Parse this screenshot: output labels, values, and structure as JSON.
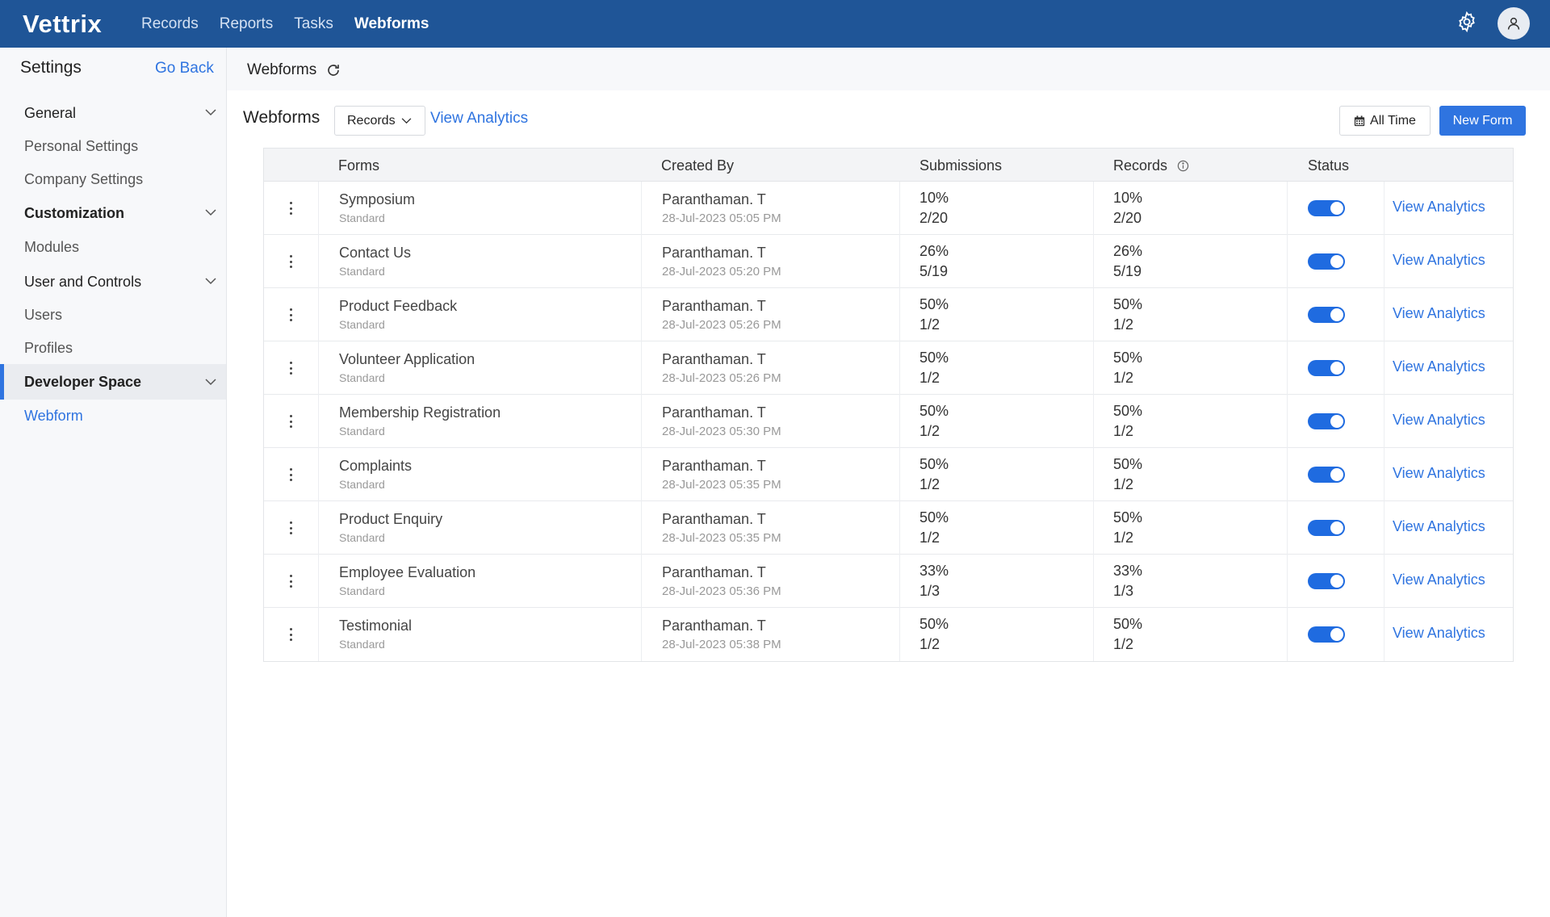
{
  "app": {
    "logo": "Vettrix"
  },
  "nav": {
    "items": [
      {
        "label": "Records"
      },
      {
        "label": "Reports"
      },
      {
        "label": "Tasks"
      },
      {
        "label": "Webforms"
      }
    ],
    "active": "Webforms"
  },
  "sidebar": {
    "title": "Settings",
    "go_back": "Go Back",
    "items": [
      {
        "label": "General",
        "type": "group"
      },
      {
        "label": "Personal Settings",
        "type": "item"
      },
      {
        "label": "Company Settings",
        "type": "item"
      },
      {
        "label": "Customization",
        "type": "group"
      },
      {
        "label": "Modules",
        "type": "item"
      },
      {
        "label": "User and Controls",
        "type": "group"
      },
      {
        "label": "Users",
        "type": "item"
      },
      {
        "label": "Profiles",
        "type": "item"
      },
      {
        "label": "Developer Space",
        "type": "group"
      },
      {
        "label": "Webform",
        "type": "item"
      }
    ]
  },
  "subheader": {
    "title": "Webforms"
  },
  "toolbar": {
    "title": "Webforms",
    "module_select": "Records",
    "view_analytics": "View Analytics",
    "all_time": "All Time",
    "new_form": "New Form"
  },
  "table": {
    "headers": {
      "forms": "Forms",
      "created_by": "Created By",
      "submissions": "Submissions",
      "records": "Records",
      "status": "Status"
    },
    "rows": [
      {
        "name": "Symposium",
        "type": "Standard",
        "creator": "Paranthaman. T",
        "date": "28-Jul-2023 05:05 PM",
        "sub_pct": "10%",
        "sub_frac": "2/20",
        "rec_pct": "10%",
        "rec_frac": "2/20",
        "active": true,
        "action": "View Analytics"
      },
      {
        "name": "Contact Us",
        "type": "Standard",
        "creator": "Paranthaman. T",
        "date": "28-Jul-2023 05:20 PM",
        "sub_pct": "26%",
        "sub_frac": "5/19",
        "rec_pct": "26%",
        "rec_frac": "5/19",
        "active": true,
        "action": "View Analytics"
      },
      {
        "name": "Product Feedback",
        "type": "Standard",
        "creator": "Paranthaman. T",
        "date": "28-Jul-2023 05:26 PM",
        "sub_pct": "50%",
        "sub_frac": "1/2",
        "rec_pct": "50%",
        "rec_frac": "1/2",
        "active": true,
        "action": "View Analytics"
      },
      {
        "name": "Volunteer Application",
        "type": "Standard",
        "creator": "Paranthaman. T",
        "date": "28-Jul-2023 05:26 PM",
        "sub_pct": "50%",
        "sub_frac": "1/2",
        "rec_pct": "50%",
        "rec_frac": "1/2",
        "active": true,
        "action": "View Analytics"
      },
      {
        "name": "Membership Registration",
        "type": "Standard",
        "creator": "Paranthaman. T",
        "date": "28-Jul-2023 05:30 PM",
        "sub_pct": "50%",
        "sub_frac": "1/2",
        "rec_pct": "50%",
        "rec_frac": "1/2",
        "active": true,
        "action": "View Analytics"
      },
      {
        "name": "Complaints",
        "type": "Standard",
        "creator": "Paranthaman. T",
        "date": "28-Jul-2023 05:35 PM",
        "sub_pct": "50%",
        "sub_frac": "1/2",
        "rec_pct": "50%",
        "rec_frac": "1/2",
        "active": true,
        "action": "View Analytics"
      },
      {
        "name": "Product Enquiry",
        "type": "Standard",
        "creator": "Paranthaman. T",
        "date": "28-Jul-2023 05:35 PM",
        "sub_pct": "50%",
        "sub_frac": "1/2",
        "rec_pct": "50%",
        "rec_frac": "1/2",
        "active": true,
        "action": "View Analytics"
      },
      {
        "name": "Employee Evaluation",
        "type": "Standard",
        "creator": "Paranthaman. T",
        "date": "28-Jul-2023 05:36 PM",
        "sub_pct": "33%",
        "sub_frac": "1/3",
        "rec_pct": "33%",
        "rec_frac": "1/3",
        "active": true,
        "action": "View Analytics"
      },
      {
        "name": "Testimonial",
        "type": "Standard",
        "creator": "Paranthaman. T",
        "date": "28-Jul-2023 05:38 PM",
        "sub_pct": "50%",
        "sub_frac": "1/2",
        "rec_pct": "50%",
        "rec_frac": "1/2",
        "active": true,
        "action": "View Analytics"
      }
    ]
  },
  "icons": {
    "settings": "gear-icon",
    "profile": "user-icon",
    "refresh": "refresh-icon",
    "calendar": "calendar-icon",
    "info": "info-icon"
  },
  "colors": {
    "topbar": "#1f5597",
    "accent": "#2f74e0",
    "toggle_on": "#1f6be0"
  }
}
